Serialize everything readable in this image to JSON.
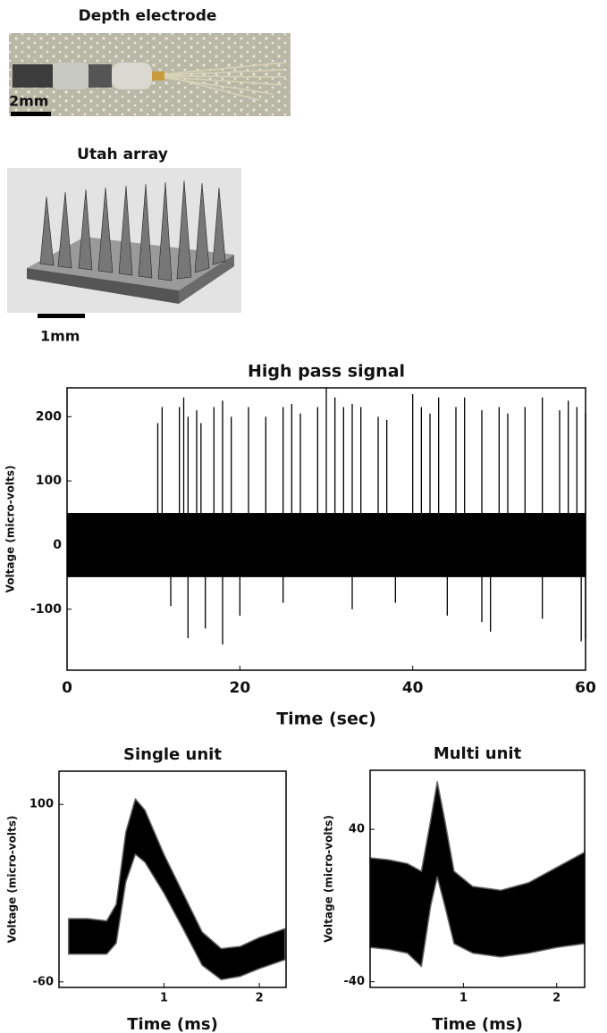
{
  "photos": [
    {
      "title": "Depth electrode",
      "scale_label": "2mm"
    },
    {
      "title": "Utah array",
      "scale_label": "1mm"
    }
  ],
  "chart_data": [
    {
      "type": "spikes",
      "title": "High pass signal",
      "x_label": "Time (sec)",
      "y_label": "Voltage (micro-volts)",
      "xlim": [
        0,
        60
      ],
      "xticks": [
        0,
        20,
        40,
        60
      ],
      "ylim": [
        -195,
        245
      ],
      "yticks": [
        -100,
        0,
        100,
        200
      ],
      "noise_low": -50,
      "noise_high": 50,
      "spike_x": [
        10.5,
        11,
        13,
        13.5,
        14,
        15,
        15.5,
        17,
        18,
        19,
        21,
        23,
        25,
        26,
        27,
        29,
        30,
        31,
        32,
        33,
        34,
        36,
        37,
        40,
        41,
        42,
        43,
        45,
        46,
        48,
        50,
        51,
        53,
        55,
        57,
        58,
        59,
        60
      ],
      "spike_values": [
        190,
        215,
        215,
        230,
        200,
        210,
        190,
        215,
        225,
        200,
        215,
        200,
        215,
        220,
        205,
        215,
        245,
        230,
        215,
        220,
        215,
        200,
        195,
        235,
        215,
        205,
        230,
        215,
        230,
        210,
        215,
        205,
        215,
        230,
        210,
        225,
        215,
        205
      ],
      "trough_x": [
        12,
        14,
        16,
        18,
        20,
        25,
        33,
        38,
        44,
        48,
        49,
        55,
        59.5,
        60
      ],
      "trough_values": [
        -95,
        -145,
        -130,
        -155,
        -110,
        -90,
        -100,
        -90,
        -110,
        -120,
        -135,
        -115,
        -150,
        -145
      ],
      "color": "#000000"
    },
    {
      "type": "band",
      "title": "Single unit",
      "x_label": "Time (ms)",
      "y_label": "Voltage (micro-volts)",
      "xlim": [
        -0.1,
        2.28
      ],
      "xticks": [
        1,
        2
      ],
      "ylim": [
        -65,
        130
      ],
      "yticks": [
        -60,
        100
      ],
      "x": [
        0,
        0.2,
        0.4,
        0.5,
        0.6,
        0.7,
        0.8,
        1.0,
        1.2,
        1.4,
        1.6,
        1.8,
        2.0,
        2.27
      ],
      "upper": [
        -3,
        -3,
        -5,
        10,
        75,
        105,
        95,
        55,
        20,
        -15,
        -30,
        -28,
        -20,
        -12
      ],
      "lower": [
        -35,
        -35,
        -35,
        -25,
        30,
        55,
        48,
        20,
        -12,
        -45,
        -58,
        -55,
        -48,
        -40
      ],
      "color": "#000000"
    },
    {
      "type": "band",
      "title": "Multi unit",
      "x_label": "Time (ms)",
      "y_label": "Voltage (micro-volts)",
      "xlim": [
        0,
        2.3
      ],
      "xticks": [
        1,
        2
      ],
      "ylim": [
        -43,
        71
      ],
      "yticks": [
        -40,
        40
      ],
      "x": [
        0,
        0.2,
        0.4,
        0.55,
        0.65,
        0.72,
        0.8,
        0.9,
        1.1,
        1.4,
        1.7,
        2.0,
        2.3
      ],
      "upper": [
        25,
        24,
        22,
        18,
        45,
        65,
        45,
        18,
        10,
        8,
        12,
        20,
        28
      ],
      "lower": [
        -22,
        -23,
        -25,
        -32,
        0,
        15,
        0,
        -20,
        -25,
        -27,
        -25,
        -22,
        -20
      ],
      "color": "#000000"
    }
  ]
}
